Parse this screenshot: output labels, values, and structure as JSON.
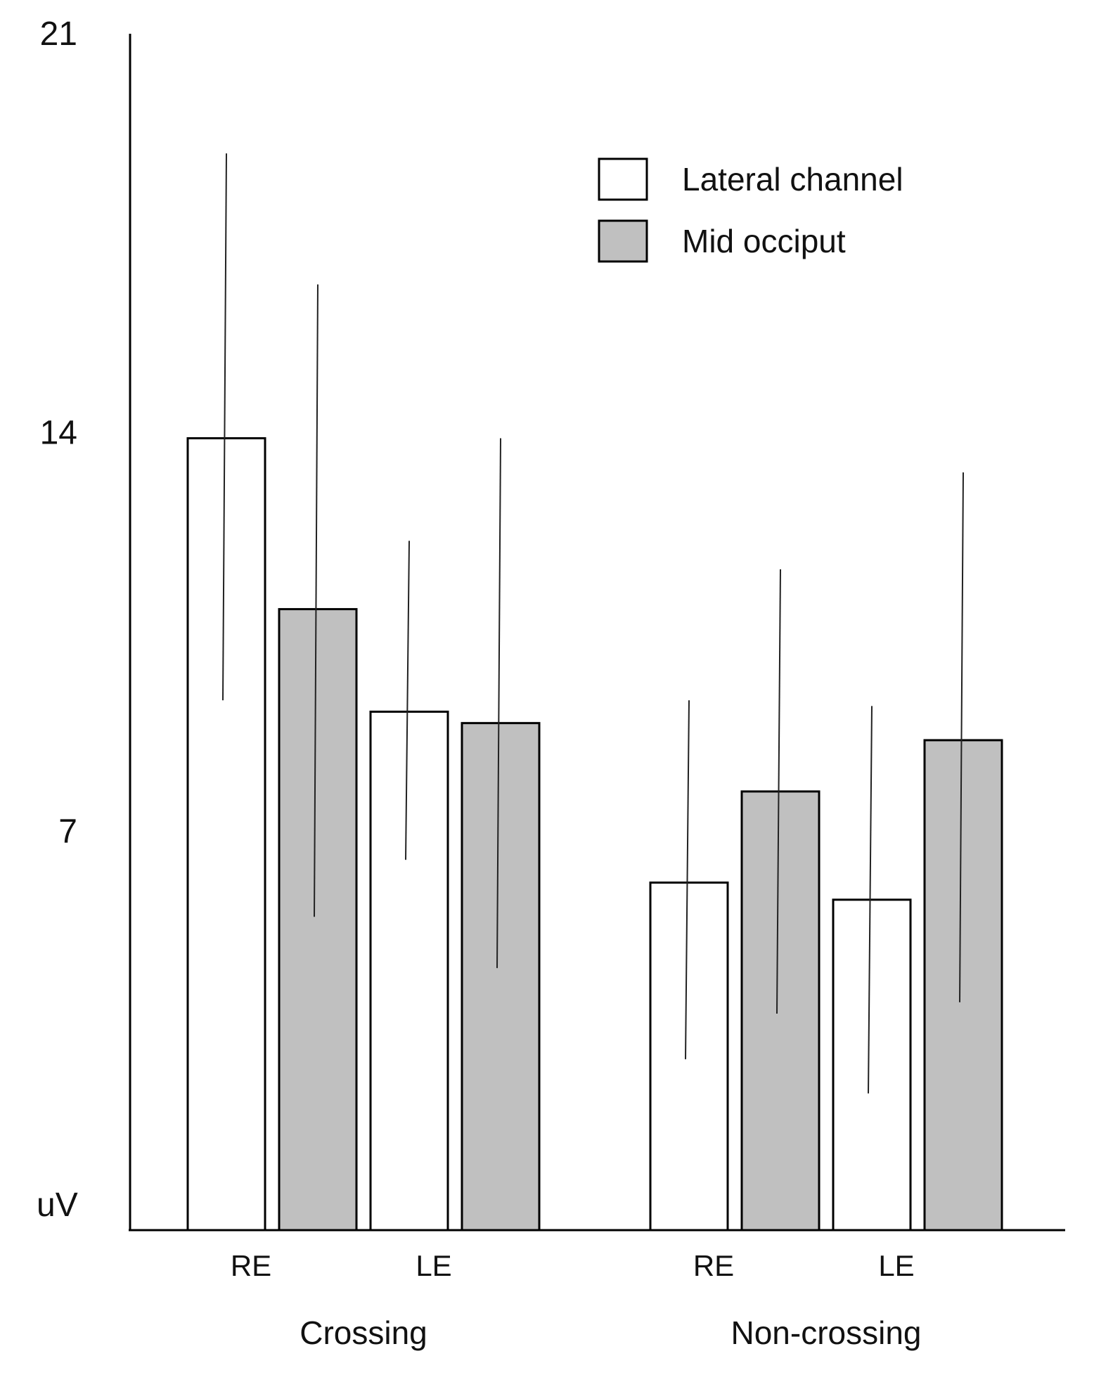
{
  "chart_data": {
    "type": "bar",
    "title": "",
    "xlabel": "",
    "ylabel": "uV",
    "ylim": [
      0,
      21
    ],
    "yticks": [
      {
        "value": 21,
        "label": "21"
      },
      {
        "value": 14,
        "label": "14"
      },
      {
        "value": 7,
        "label": "7"
      }
    ],
    "grid": false,
    "legend_position": "top-right",
    "groups": [
      {
        "label": "Crossing",
        "categories": [
          "RE",
          "LE"
        ]
      },
      {
        "label": "Non-crossing",
        "categories": [
          "RE",
          "LE"
        ]
      }
    ],
    "series": [
      {
        "name": "Lateral channel",
        "color": "#ffffff",
        "values": [
          13.9,
          9.1,
          6.1,
          5.8
        ],
        "error_low": [
          9.3,
          6.5,
          3.0,
          2.4
        ],
        "error_high": [
          18.9,
          12.1,
          9.3,
          9.2
        ]
      },
      {
        "name": "Mid occiput",
        "color": "#c0c0c0",
        "values": [
          10.9,
          8.9,
          7.7,
          8.6
        ],
        "error_low": [
          5.5,
          4.6,
          3.8,
          4.0
        ],
        "error_high": [
          16.6,
          13.9,
          11.6,
          13.3
        ]
      }
    ]
  }
}
